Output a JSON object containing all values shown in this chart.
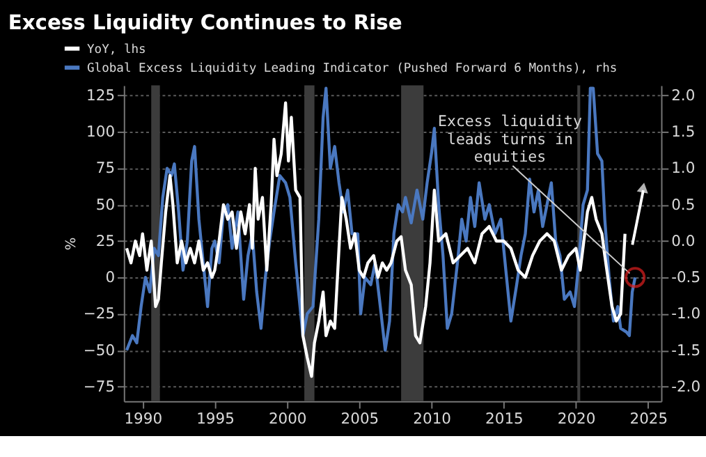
{
  "chart_data": {
    "type": "line",
    "title": "Excess Liquidity Continues to Rise",
    "ylabel": "%",
    "xlim": [
      1988.7,
      2025.9
    ],
    "xticks": [
      1990,
      1995,
      2000,
      2005,
      2010,
      2015,
      2020,
      2025
    ],
    "ylim": [
      -85,
      132
    ],
    "yticks": [
      -75,
      -50,
      -25,
      0,
      25,
      50,
      75,
      100,
      125
    ],
    "y2lim": [
      -2.2,
      2.14
    ],
    "y2ticks": [
      {
        "value": -2,
        "label": "-2.0"
      },
      {
        "value": -1.5,
        "label": "-1.5"
      },
      {
        "value": -1,
        "label": "-1.0"
      },
      {
        "value": -0.5,
        "label": "-0.5"
      },
      {
        "value": 0,
        "label": "0.0"
      },
      {
        "value": 0.5,
        "label": "0.5"
      },
      {
        "value": 1,
        "label": "1.0"
      },
      {
        "value": 1.5,
        "label": "1.5"
      },
      {
        "value": 2,
        "label": "2.0"
      }
    ],
    "grid": "y",
    "legend": "top left",
    "line_style": "solid",
    "bands": [
      {
        "axis": "x",
        "from": 1990.6,
        "to": 1991.2,
        "color": "#3c3c3c"
      },
      {
        "axis": "x",
        "from": 2001.2,
        "to": 2001.9,
        "color": "#3c3c3c"
      },
      {
        "axis": "x",
        "from": 2007.9,
        "to": 2009.45,
        "color": "#3c3c3c"
      },
      {
        "axis": "x",
        "from": 2020.1,
        "to": 2020.3,
        "color": "#3c3c3c"
      }
    ],
    "annotations": [
      {
        "text": "Excess liquidity leads turns in equities",
        "x": 2024.1,
        "y": 0
      }
    ],
    "series": [
      {
        "name": "YoY, lhs",
        "color": "#ffffff",
        "x": [
          1988.9,
          1989.2,
          1989.5,
          1989.8,
          1990.0,
          1990.3,
          1990.6,
          1990.9,
          1991.1,
          1991.3,
          1991.6,
          1991.9,
          1992.1,
          1992.4,
          1992.7,
          1993.0,
          1993.3,
          1993.6,
          1993.9,
          1994.2,
          1994.5,
          1994.8,
          1995.0,
          1995.3,
          1995.6,
          1995.9,
          1996.2,
          1996.5,
          1996.8,
          1997.1,
          1997.4,
          1997.6,
          1997.8,
          1998.0,
          1998.3,
          1998.6,
          1998.9,
          1999.1,
          1999.3,
          1999.6,
          1999.9,
          2000.1,
          2000.3,
          2000.6,
          2000.9,
          2001.1,
          2001.4,
          2001.7,
          2001.9,
          2002.2,
          2002.5,
          2002.7,
          2003.0,
          2003.3,
          2003.6,
          2003.8,
          2004.1,
          2004.4,
          2004.7,
          2005.0,
          2005.3,
          2005.6,
          2006.0,
          2006.3,
          2006.6,
          2006.9,
          2007.2,
          2007.6,
          2007.9,
          2008.2,
          2008.6,
          2008.9,
          2009.2,
          2009.6,
          2009.9,
          2010.2,
          2010.5,
          2011.0,
          2011.5,
          2012.0,
          2012.5,
          2013.0,
          2013.5,
          2014.0,
          2014.5,
          2015.0,
          2015.5,
          2016.0,
          2016.5,
          2017.0,
          2017.5,
          2018.0,
          2018.5,
          2019.0,
          2019.5,
          2020.0,
          2020.3,
          2020.8,
          2021.1,
          2021.4,
          2021.8,
          2022.0,
          2022.5,
          2022.8,
          2023.1,
          2023.4
        ],
        "values": [
          20,
          10,
          25,
          15,
          30,
          5,
          25,
          -20,
          -15,
          10,
          45,
          70,
          50,
          10,
          25,
          10,
          20,
          10,
          25,
          5,
          10,
          0,
          5,
          25,
          50,
          40,
          45,
          20,
          45,
          30,
          50,
          20,
          75,
          40,
          55,
          5,
          50,
          95,
          70,
          85,
          120,
          80,
          110,
          60,
          55,
          -40,
          -55,
          -68,
          -45,
          -30,
          -10,
          -40,
          -30,
          -35,
          20,
          55,
          40,
          20,
          30,
          5,
          0,
          10,
          15,
          0,
          10,
          5,
          10,
          25,
          28,
          5,
          -5,
          -40,
          -45,
          -20,
          10,
          60,
          25,
          30,
          10,
          15,
          20,
          10,
          30,
          35,
          25,
          25,
          20,
          5,
          0,
          15,
          25,
          30,
          25,
          5,
          15,
          20,
          5,
          45,
          55,
          40,
          30,
          15,
          -20,
          -30,
          -25,
          30
        ]
      },
      {
        "name": "Global Excess Liquidity Leading Indicator (Pushed Forward 6 Months), rhs",
        "color": "#4a78c0",
        "axis": "y2",
        "x": [
          1988.9,
          1989.3,
          1989.6,
          1989.9,
          1990.2,
          1990.5,
          1990.8,
          1991.1,
          1991.4,
          1991.7,
          1992.0,
          1992.2,
          1992.5,
          1992.8,
          1993.1,
          1993.4,
          1993.6,
          1993.9,
          1994.2,
          1994.5,
          1994.8,
          1995.0,
          1995.3,
          1995.6,
          1995.9,
          1996.2,
          1996.6,
          1997.0,
          1997.3,
          1997.6,
          1997.9,
          1998.2,
          1998.5,
          1998.8,
          1999.1,
          1999.5,
          1999.9,
          2000.2,
          2000.6,
          2000.9,
          2001.1,
          2001.4,
          2001.8,
          2002.2,
          2002.5,
          2002.7,
          2003.0,
          2003.3,
          2003.6,
          2003.9,
          2004.2,
          2004.5,
          2004.9,
          2005.1,
          2005.4,
          2005.8,
          2006.1,
          2006.4,
          2006.8,
          2007.1,
          2007.4,
          2007.7,
          2008.0,
          2008.2,
          2008.6,
          2009.0,
          2009.4,
          2009.7,
          2010.0,
          2010.2,
          2010.5,
          2010.8,
          2011.1,
          2011.4,
          2011.8,
          2012.1,
          2012.4,
          2012.7,
          2013.0,
          2013.3,
          2013.7,
          2014.0,
          2014.4,
          2014.8,
          2015.2,
          2015.5,
          2015.9,
          2016.2,
          2016.5,
          2016.8,
          2017.1,
          2017.4,
          2017.7,
          2018.0,
          2018.3,
          2018.6,
          2018.9,
          2019.2,
          2019.6,
          2019.9,
          2020.2,
          2020.5,
          2020.8,
          2021.0,
          2021.2,
          2021.5,
          2021.8,
          2022.0,
          2022.3,
          2022.6,
          2022.9,
          2023.1,
          2023.5,
          2023.7,
          2023.9,
          2024.1
        ],
        "values": [
          -1.5,
          -1.3,
          -1.4,
          -0.9,
          -0.5,
          -0.7,
          -0.1,
          -0.2,
          0.6,
          1.0,
          0.9,
          1.06,
          0.4,
          -0.4,
          0.0,
          1.1,
          1.3,
          0.3,
          -0.3,
          -0.9,
          -0.1,
          0.0,
          -0.3,
          0.4,
          0.5,
          -0.1,
          0.4,
          -0.8,
          -0.2,
          0.1,
          -0.7,
          -1.2,
          -0.5,
          0.0,
          0.4,
          0.9,
          0.8,
          0.6,
          -0.3,
          -0.9,
          -1.3,
          -1.0,
          -0.9,
          0.3,
          1.7,
          2.1,
          1.0,
          1.3,
          0.8,
          0.4,
          0.7,
          0.1,
          0.1,
          -1.0,
          -0.5,
          -0.6,
          -0.3,
          -0.8,
          -1.5,
          -1.1,
          0.1,
          0.5,
          0.4,
          0.6,
          0.25,
          0.7,
          0.3,
          0.8,
          1.2,
          1.55,
          0.5,
          -0.2,
          -1.2,
          -1.0,
          -0.3,
          0.3,
          0.0,
          0.6,
          0.2,
          0.8,
          0.3,
          0.5,
          0.1,
          0.3,
          -0.5,
          -1.1,
          -0.6,
          -0.2,
          0.1,
          0.85,
          0.4,
          0.7,
          0.2,
          0.5,
          0.8,
          0.0,
          -0.2,
          -0.8,
          -0.7,
          -0.9,
          -0.3,
          0.5,
          0.7,
          2.1,
          2.1,
          1.2,
          1.1,
          0.3,
          -0.5,
          -1.1,
          -0.9,
          -1.2,
          -1.25,
          -1.3,
          -0.7,
          -0.5
        ]
      }
    ]
  }
}
